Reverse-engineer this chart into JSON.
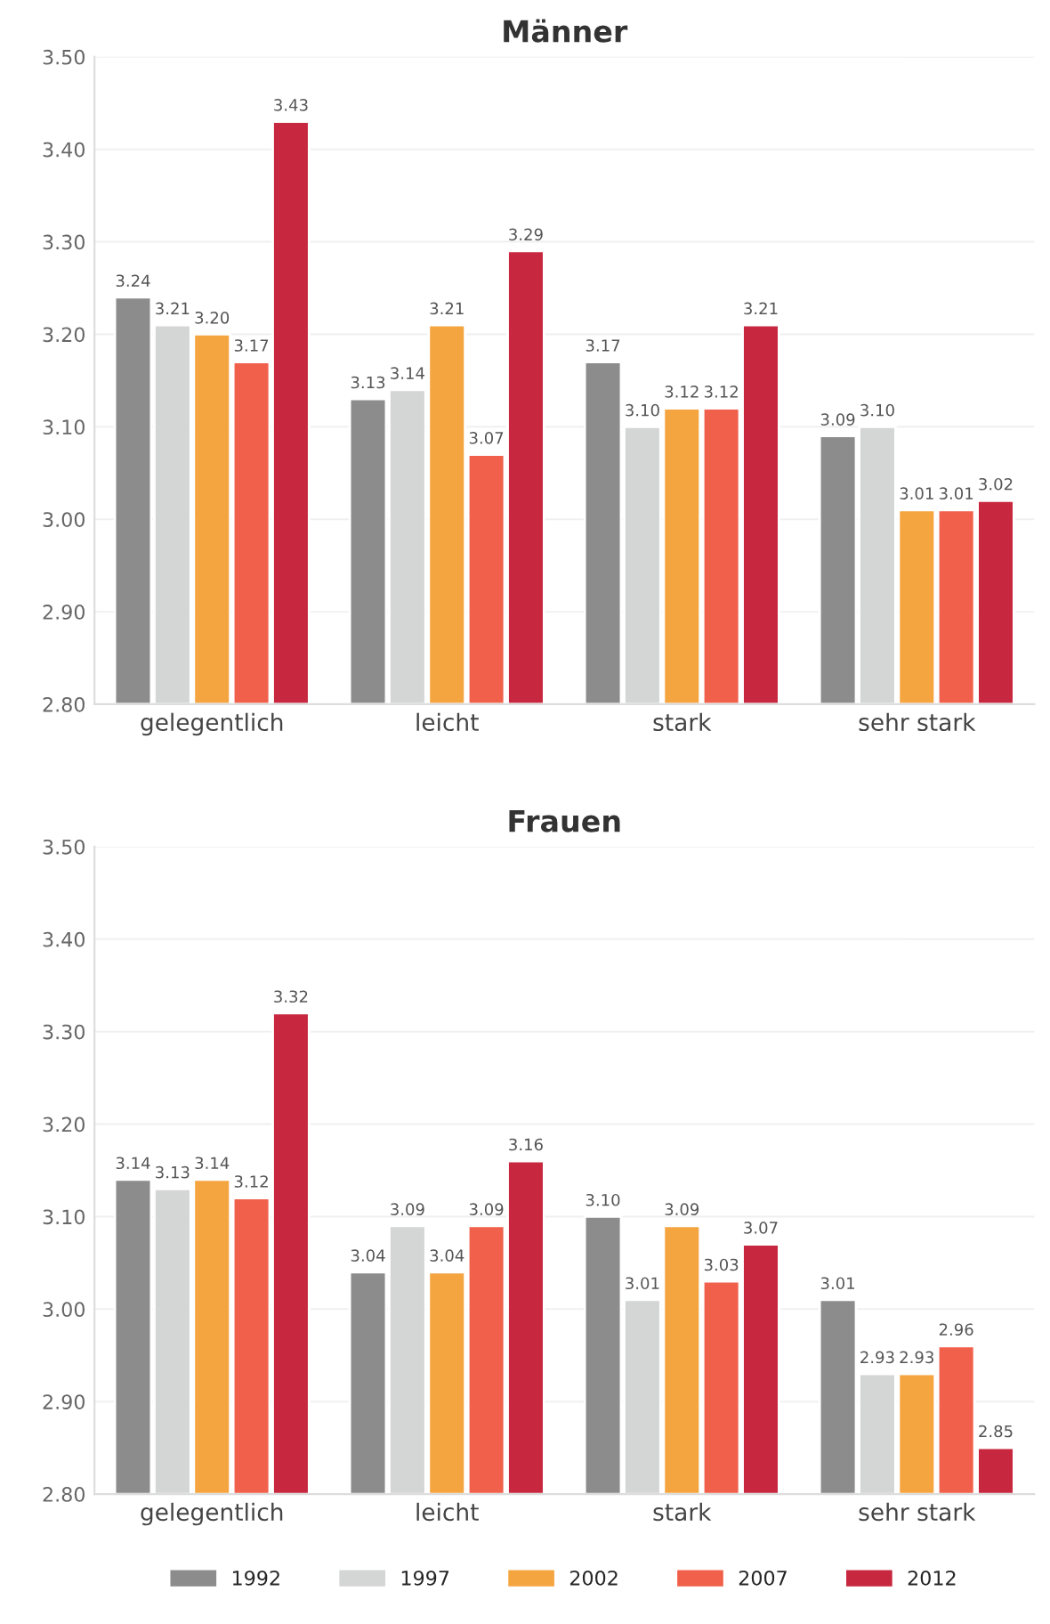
{
  "chart_data": [
    {
      "type": "bar",
      "title": "Männer",
      "categories": [
        "gelegentlich",
        "leicht",
        "stark",
        "sehr stark"
      ],
      "series": [
        {
          "color": "#8c8c8c",
          "values": [
            3.24,
            3.13,
            3.17,
            3.09
          ],
          "value_labels": [
            "3.24",
            "3.13",
            "3.17",
            "3.09"
          ]
        },
        {
          "color": "#d3d6d5",
          "values": [
            3.21,
            3.14,
            3.1,
            3.1
          ],
          "value_labels": [
            "3.21",
            "3.14",
            "3.10",
            "3.10"
          ]
        },
        {
          "color": "#f5a540",
          "values": [
            3.2,
            3.21,
            3.12,
            3.01
          ],
          "value_labels": [
            "3.20",
            "3.21",
            "3.12",
            "3.01"
          ]
        },
        {
          "color": "#f0604a",
          "values": [
            3.17,
            3.07,
            3.12,
            3.01
          ],
          "value_labels": [
            "3.17",
            "3.07",
            "3.12",
            "3.01"
          ]
        },
        {
          "color": "#c8283f",
          "values": [
            3.43,
            3.29,
            3.21,
            3.02
          ],
          "value_labels": [
            "3.43",
            "3.29",
            "3.21",
            "3.02"
          ]
        }
      ],
      "ylim": [
        2.8,
        3.5
      ],
      "yticks": [
        {
          "value": 2.8,
          "label": "2.80"
        },
        {
          "value": 2.9,
          "label": "2.90"
        },
        {
          "value": 3.0,
          "label": "3.00"
        },
        {
          "value": 3.1,
          "label": "3.10"
        },
        {
          "value": 3.2,
          "label": "3.20"
        },
        {
          "value": 3.3,
          "label": "3.30"
        },
        {
          "value": 3.4,
          "label": "3.40"
        },
        {
          "value": 3.5,
          "label": "3.50"
        }
      ],
      "grid": "y"
    },
    {
      "type": "bar",
      "title": "Frauen",
      "categories": [
        "gelegentlich",
        "leicht",
        "stark",
        "sehr stark"
      ],
      "series": [
        {
          "name": "1992",
          "color": "#8c8c8c",
          "values": [
            3.14,
            3.04,
            3.1,
            3.01
          ],
          "value_labels": [
            "3.14",
            "3.04",
            "3.10",
            "3.01"
          ]
        },
        {
          "name": "1997",
          "color": "#d3d6d5",
          "values": [
            3.13,
            3.09,
            3.01,
            2.93
          ],
          "value_labels": [
            "3.13",
            "3.09",
            "3.01",
            "2.93"
          ]
        },
        {
          "name": "2002",
          "color": "#f5a540",
          "values": [
            3.14,
            3.04,
            3.09,
            2.93
          ],
          "value_labels": [
            "3.14",
            "3.04",
            "3.09",
            "2.93"
          ]
        },
        {
          "name": "2007",
          "color": "#f0604a",
          "values": [
            3.12,
            3.09,
            3.03,
            2.96
          ],
          "value_labels": [
            "3.12",
            "3.09",
            "3.03",
            "2.96"
          ]
        },
        {
          "name": "2012",
          "color": "#c8283f",
          "values": [
            3.32,
            3.16,
            3.07,
            2.85
          ],
          "value_labels": [
            "3.32",
            "3.16",
            "3.07",
            "2.85"
          ]
        }
      ],
      "ylim": [
        2.8,
        3.5
      ],
      "yticks": [
        {
          "value": 2.8,
          "label": "2.80"
        },
        {
          "value": 2.9,
          "label": "2.90"
        },
        {
          "value": 3.0,
          "label": "3.00"
        },
        {
          "value": 3.1,
          "label": "3.10"
        },
        {
          "value": 3.2,
          "label": "3.20"
        },
        {
          "value": 3.3,
          "label": "3.30"
        },
        {
          "value": 3.4,
          "label": "3.40"
        },
        {
          "value": 3.5,
          "label": "3.50"
        }
      ],
      "grid": "y",
      "legend": "bottom"
    }
  ]
}
